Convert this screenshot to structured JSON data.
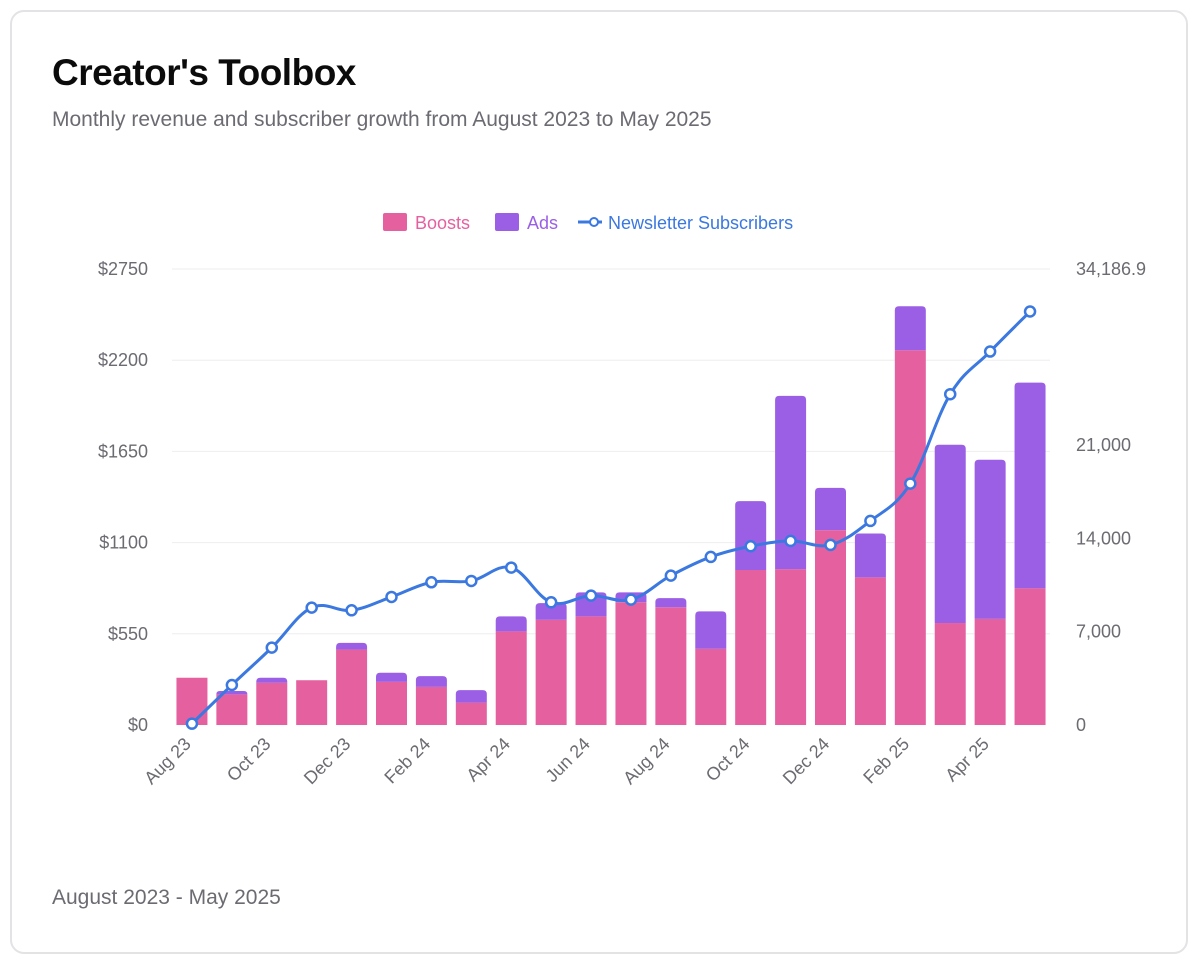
{
  "card": {
    "title": "Creator's Toolbox",
    "subtitle": "Monthly revenue and subscriber growth from August 2023 to May 2025",
    "footer": "August 2023 - May 2025"
  },
  "colors": {
    "boosts": "#e5609f",
    "ads": "#9b5fe6",
    "subscribers": "#3b78e0",
    "grid": "#eeeeef",
    "axis_text": "#6b6b72"
  },
  "chart_data": {
    "type": "bar",
    "stacked": true,
    "categories": [
      "Aug 23",
      "Sep 23",
      "Oct 23",
      "Nov 23",
      "Dec 23",
      "Jan 24",
      "Feb 24",
      "Mar 24",
      "Apr 24",
      "May 24",
      "Jun 24",
      "Jul 24",
      "Aug 24",
      "Sep 24",
      "Oct 24",
      "Nov 24",
      "Dec 24",
      "Jan 25",
      "Feb 25",
      "Mar 25",
      "Apr 25",
      "May 25"
    ],
    "x_tick_labels": [
      "Aug 23",
      "Oct 23",
      "Dec 23",
      "Feb 24",
      "Apr 24",
      "Jun 24",
      "Aug 24",
      "Oct 24",
      "Dec 24",
      "Feb 25",
      "Apr 25"
    ],
    "series": [
      {
        "name": "Boosts",
        "type": "bar",
        "axis": "left",
        "values": [
          285,
          185,
          255,
          270,
          455,
          260,
          230,
          135,
          565,
          635,
          655,
          740,
          710,
          460,
          935,
          940,
          1175,
          890,
          2260,
          615,
          640,
          825
        ]
      },
      {
        "name": "Ads",
        "type": "bar",
        "axis": "left",
        "values": [
          0,
          20,
          30,
          0,
          40,
          55,
          65,
          75,
          90,
          100,
          145,
          60,
          55,
          225,
          415,
          1045,
          255,
          265,
          265,
          1075,
          960,
          1240
        ]
      },
      {
        "name": "Newsletter Subscribers",
        "type": "line",
        "axis": "right",
        "values": [
          100,
          3000,
          5800,
          8800,
          8600,
          9600,
          10700,
          10800,
          11800,
          9200,
          9700,
          9400,
          11200,
          12600,
          13400,
          13800,
          13500,
          15300,
          18100,
          24800,
          28000,
          31000
        ]
      }
    ],
    "y_left": {
      "ticks": [
        "$0",
        "$550",
        "$1100",
        "$1650",
        "$2200",
        "$2750"
      ],
      "ylim": [
        0,
        2750
      ]
    },
    "y_right": {
      "ticks": [
        "0",
        "7,000",
        "14,000",
        "21,000",
        "34,186.9"
      ],
      "tick_values": [
        0,
        7000,
        14000,
        21000,
        34186.9
      ],
      "ylim": [
        0,
        34186.9
      ]
    },
    "legend": {
      "position": "top-center",
      "entries": [
        "Boosts",
        "Ads",
        "Newsletter Subscribers"
      ]
    },
    "grid": true
  }
}
